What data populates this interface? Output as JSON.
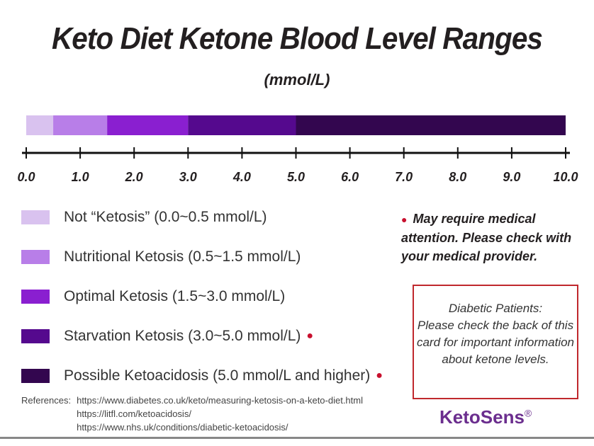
{
  "chart_data": {
    "type": "bar",
    "title": "Keto Diet Ketone Blood Level Ranges",
    "subtitle": "(mmol/L)",
    "xlim": [
      0,
      10
    ],
    "ticks": [
      "0.0",
      "1.0",
      "2.0",
      "3.0",
      "4.0",
      "5.0",
      "6.0",
      "7.0",
      "8.0",
      "9.0",
      "10.0"
    ],
    "segments": [
      {
        "name": "Not “Ketosis” (0.0~0.5 mmol/L)",
        "start": 0,
        "end": 0.5,
        "color": "#d9c2ef",
        "warning": false
      },
      {
        "name": "Nutritional Ketosis (0.5~1.5 mmol/L)",
        "start": 0.5,
        "end": 1.5,
        "color": "#b87ee8",
        "warning": false
      },
      {
        "name": "Optimal Ketosis (1.5~3.0 mmol/L)",
        "start": 1.5,
        "end": 3.0,
        "color": "#8a1fd0",
        "warning": false
      },
      {
        "name": "Starvation Ketosis (3.0~5.0 mmol/L)",
        "start": 3.0,
        "end": 5.0,
        "color": "#55098e",
        "warning": true
      },
      {
        "name": "Possible Ketoacidosis (5.0 mmol/L and higher)",
        "start": 5.0,
        "end": 10,
        "color": "#33064f",
        "warning": true
      }
    ],
    "legend": "bottom-left"
  },
  "note": "May require medical attention. Please check with your medical provider.",
  "note_marker": "●",
  "box": {
    "title": "Diabetic Patients:",
    "text": "Please check the back of this card for important information about ketone levels."
  },
  "references": {
    "label": "References:",
    "links": [
      "https://www.diabetes.co.uk/keto/measuring-ketosis-on-a-keto-diet.html",
      "https://litfl.com/ketoacidosis/",
      "https://www.nhs.uk/conditions/diabetic-ketoacidosis/"
    ]
  },
  "logo": {
    "text": "KetoSens",
    "mark": "®"
  }
}
